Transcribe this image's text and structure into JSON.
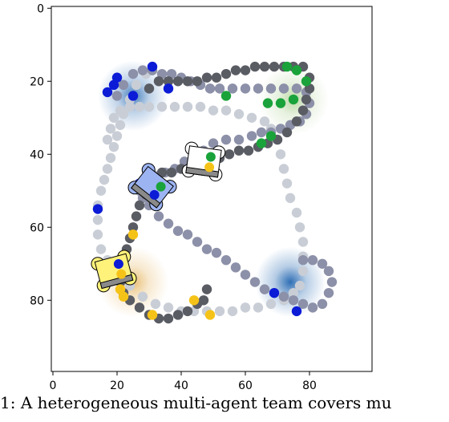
{
  "chart_data": {
    "type": "scatter",
    "title": "",
    "xlabel": "",
    "ylabel": "",
    "xlim": [
      -0.5,
      99.5
    ],
    "ylim": [
      99.5,
      -0.5
    ],
    "x_ticks": [
      0,
      20,
      40,
      60,
      80
    ],
    "y_ticks": [
      0,
      20,
      40,
      60,
      80
    ],
    "grid": false,
    "colors": {
      "dark_path": "#5a5c64",
      "mid_path": "#8c90a8",
      "light_path": "#c9ced6",
      "blue": "#0b1bd6",
      "green": "#1aa33a",
      "yellow": "#f5c318",
      "blue_robot_body": "#9db4f2",
      "yellow_robot_body": "#fff27a",
      "white_robot_body": "#ffffff"
    },
    "heat_spots": [
      {
        "x": 25,
        "y": 24,
        "color": "#2f6fb5",
        "strength": 0.9
      },
      {
        "x": 74,
        "y": 75,
        "color": "#2f6fb5",
        "strength": 1.0
      },
      {
        "x": 75,
        "y": 25,
        "color": "#8fbf6a",
        "strength": 0.6
      },
      {
        "x": 25,
        "y": 75,
        "color": "#e0a43a",
        "strength": 0.7
      }
    ],
    "series": [
      {
        "color_key": "light_path",
        "points": [
          [
            29,
            18
          ],
          [
            26,
            21
          ],
          [
            24,
            25
          ],
          [
            22,
            29
          ],
          [
            21,
            32
          ],
          [
            20,
            35
          ],
          [
            19,
            38
          ],
          [
            18,
            41
          ],
          [
            17,
            44
          ],
          [
            16,
            47
          ],
          [
            15,
            50
          ],
          [
            14,
            54
          ],
          [
            14,
            58
          ],
          [
            14,
            62
          ],
          [
            15,
            66
          ],
          [
            17,
            69
          ],
          [
            20,
            72
          ],
          [
            24,
            76
          ],
          [
            28,
            79
          ],
          [
            32,
            81
          ],
          [
            36,
            82
          ],
          [
            40,
            83
          ],
          [
            44,
            83
          ],
          [
            48,
            83
          ],
          [
            52,
            83
          ],
          [
            56,
            83
          ],
          [
            60,
            82
          ],
          [
            64,
            82
          ],
          [
            68,
            81
          ],
          [
            72,
            80
          ],
          [
            75,
            78
          ],
          [
            77,
            76
          ],
          [
            78,
            72
          ],
          [
            78,
            68
          ],
          [
            78,
            64
          ],
          [
            77,
            60
          ],
          [
            76,
            56
          ],
          [
            74,
            52
          ],
          [
            73,
            48
          ],
          [
            72,
            44
          ],
          [
            71,
            40
          ],
          [
            70,
            36
          ],
          [
            68,
            33
          ],
          [
            66,
            31
          ],
          [
            62,
            30
          ],
          [
            58,
            29
          ],
          [
            54,
            28
          ],
          [
            50,
            28
          ],
          [
            46,
            27
          ],
          [
            42,
            27
          ],
          [
            38,
            27
          ],
          [
            34,
            27
          ],
          [
            30,
            27
          ],
          [
            27,
            27
          ],
          [
            24,
            27
          ],
          [
            21,
            28
          ],
          [
            19,
            30
          ],
          [
            18,
            33
          ],
          [
            17,
            36
          ]
        ]
      },
      {
        "color_key": "mid_path",
        "points": [
          [
            20,
            24
          ],
          [
            22,
            21
          ],
          [
            25,
            18
          ],
          [
            28,
            17
          ],
          [
            31,
            17
          ],
          [
            34,
            18
          ],
          [
            37,
            18
          ],
          [
            40,
            19
          ],
          [
            43,
            20
          ],
          [
            46,
            21
          ],
          [
            49,
            22
          ],
          [
            52,
            22
          ],
          [
            56,
            22
          ],
          [
            60,
            22
          ],
          [
            64,
            22
          ],
          [
            68,
            22
          ],
          [
            72,
            22
          ],
          [
            76,
            22
          ],
          [
            79,
            23
          ],
          [
            80,
            26
          ],
          [
            79,
            29
          ],
          [
            77,
            31
          ],
          [
            74,
            32
          ],
          [
            71,
            33
          ],
          [
            68,
            34
          ],
          [
            65,
            34
          ],
          [
            62,
            35
          ],
          [
            58,
            36
          ],
          [
            54,
            36
          ],
          [
            50,
            37
          ],
          [
            47,
            39
          ],
          [
            44,
            41
          ],
          [
            41,
            42
          ],
          [
            38,
            44
          ],
          [
            35,
            45
          ],
          [
            32,
            46
          ],
          [
            29,
            48
          ],
          [
            27,
            50
          ],
          [
            28,
            52
          ],
          [
            30,
            54
          ],
          [
            33,
            57
          ],
          [
            36,
            59
          ],
          [
            39,
            61
          ],
          [
            42,
            62
          ],
          [
            45,
            64
          ],
          [
            48,
            66
          ],
          [
            51,
            67
          ],
          [
            54,
            69
          ],
          [
            57,
            71
          ],
          [
            60,
            73
          ],
          [
            63,
            75
          ],
          [
            66,
            77
          ],
          [
            69,
            78
          ],
          [
            72,
            79
          ],
          [
            75,
            80
          ],
          [
            78,
            81
          ],
          [
            81,
            82
          ],
          [
            84,
            81
          ],
          [
            86,
            78
          ],
          [
            87,
            75
          ],
          [
            86,
            72
          ],
          [
            84,
            70
          ],
          [
            81,
            69
          ],
          [
            78,
            69
          ]
        ]
      },
      {
        "color_key": "dark_path",
        "points": [
          [
            30,
            22
          ],
          [
            33,
            20
          ],
          [
            36,
            20
          ],
          [
            39,
            20
          ],
          [
            42,
            20
          ],
          [
            45,
            20
          ],
          [
            48,
            19
          ],
          [
            51,
            19
          ],
          [
            54,
            18
          ],
          [
            57,
            17
          ],
          [
            60,
            17
          ],
          [
            63,
            16
          ],
          [
            66,
            16
          ],
          [
            69,
            16
          ],
          [
            72,
            16
          ],
          [
            75,
            16
          ],
          [
            78,
            16
          ],
          [
            80,
            19
          ],
          [
            80,
            22
          ],
          [
            79,
            25
          ],
          [
            78,
            28
          ],
          [
            76,
            31
          ],
          [
            73,
            34
          ],
          [
            70,
            36
          ],
          [
            67,
            37
          ],
          [
            64,
            38
          ],
          [
            61,
            39
          ],
          [
            58,
            39
          ],
          [
            55,
            40
          ],
          [
            52,
            41
          ],
          [
            49,
            42
          ],
          [
            46,
            43
          ],
          [
            43,
            44
          ],
          [
            40,
            44
          ],
          [
            37,
            45
          ],
          [
            34,
            45
          ],
          [
            32,
            47
          ],
          [
            30,
            49
          ],
          [
            29,
            51
          ],
          [
            27,
            54
          ],
          [
            26,
            57
          ],
          [
            25,
            60
          ],
          [
            24,
            63
          ],
          [
            23,
            66
          ],
          [
            22,
            69
          ],
          [
            21,
            72
          ],
          [
            21,
            75
          ],
          [
            22,
            78
          ],
          [
            24,
            80
          ],
          [
            27,
            82
          ],
          [
            30,
            84
          ],
          [
            33,
            85
          ],
          [
            36,
            85
          ],
          [
            39,
            84
          ],
          [
            42,
            83
          ],
          [
            45,
            81
          ],
          [
            47,
            80
          ],
          [
            48,
            77
          ]
        ]
      },
      {
        "color_key": "blue",
        "points": [
          [
            31,
            16
          ],
          [
            20,
            19
          ],
          [
            19,
            21
          ],
          [
            17,
            23
          ],
          [
            25,
            24
          ],
          [
            36,
            22
          ],
          [
            14,
            55
          ],
          [
            27,
            48
          ],
          [
            69,
            78
          ],
          [
            76,
            83
          ]
        ]
      },
      {
        "color_key": "green",
        "points": [
          [
            54,
            24
          ],
          [
            73,
            16
          ],
          [
            76,
            17
          ],
          [
            79,
            20
          ],
          [
            75,
            25
          ],
          [
            68,
            35
          ],
          [
            65,
            37
          ],
          [
            71,
            26
          ],
          [
            67,
            26
          ]
        ]
      },
      {
        "color_key": "yellow",
        "points": [
          [
            25,
            62
          ],
          [
            21,
            77
          ],
          [
            22,
            79
          ],
          [
            31,
            84
          ],
          [
            44,
            80
          ],
          [
            49,
            84
          ]
        ]
      }
    ],
    "robots": [
      {
        "x": 31,
        "y": 49,
        "angle": 38,
        "body": "blue_robot_body",
        "dots": [
          "green",
          "blue"
        ]
      },
      {
        "x": 47,
        "y": 42,
        "angle": 8,
        "body": "white_robot_body",
        "dots": [
          "green",
          "yellow"
        ]
      },
      {
        "x": 19,
        "y": 72,
        "angle": -15,
        "body": "yellow_robot_body",
        "dots": [
          "blue",
          "yellow"
        ]
      }
    ]
  },
  "caption": "1:  A  heterogeneous  multi-agent  team  covers  mu"
}
